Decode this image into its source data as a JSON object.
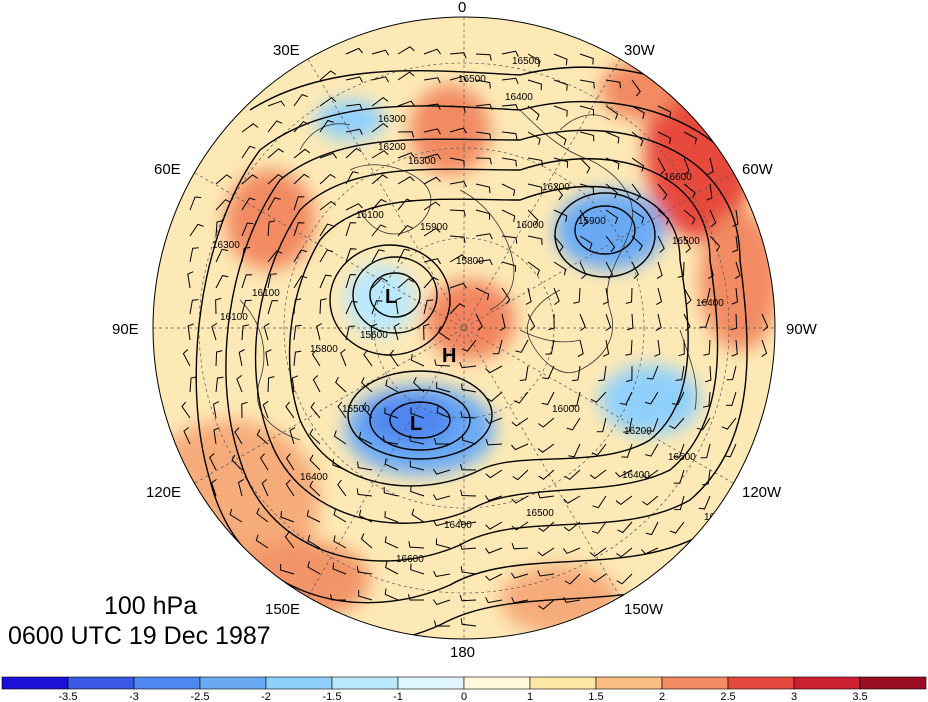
{
  "title": {
    "level": "100 hPa",
    "time": "0600 UTC 19 Dec 1987"
  },
  "map": {
    "projection": "north polar stereographic",
    "longitude_labels": [
      "0",
      "30W",
      "60W",
      "90W",
      "120W",
      "150W",
      "180",
      "150E",
      "120E",
      "90E",
      "60E",
      "30E"
    ],
    "features": [
      "coastlines",
      "country borders",
      "wind barbs",
      "geopotential height contours",
      "shaded anomaly"
    ],
    "contour_interval": 100,
    "contour_labels": [
      "16500",
      "16500",
      "16400",
      "16300",
      "16300",
      "16200",
      "16200",
      "16100",
      "16000",
      "15900",
      "15900",
      "15800",
      "15600",
      "15500",
      "16000",
      "16100",
      "16200",
      "16400",
      "16500",
      "16600",
      "16400",
      "16500",
      "16600",
      "16600",
      "16500",
      "16400",
      "16400",
      "16300",
      "16100",
      "15800"
    ],
    "systems": [
      {
        "label": "L",
        "type": "low"
      },
      {
        "label": "H",
        "type": "high"
      },
      {
        "label": "L",
        "type": "low"
      }
    ]
  },
  "colorbar": {
    "ticks": [
      "-3.5",
      "-3",
      "-2.5",
      "-2",
      "-1.5",
      "-1",
      "0",
      "1",
      "1.5",
      "2",
      "2.5",
      "3",
      "3.5"
    ],
    "colors": [
      "#1a10d8",
      "#3a58e6",
      "#4f86ef",
      "#6aaaf5",
      "#8fd0fb",
      "#b9e8fd",
      "#e0f6fe",
      "#fff8dc",
      "#fde7a7",
      "#f8be82",
      "#f28a62",
      "#e8493e",
      "#cc2031",
      "#9b0d22"
    ]
  }
}
